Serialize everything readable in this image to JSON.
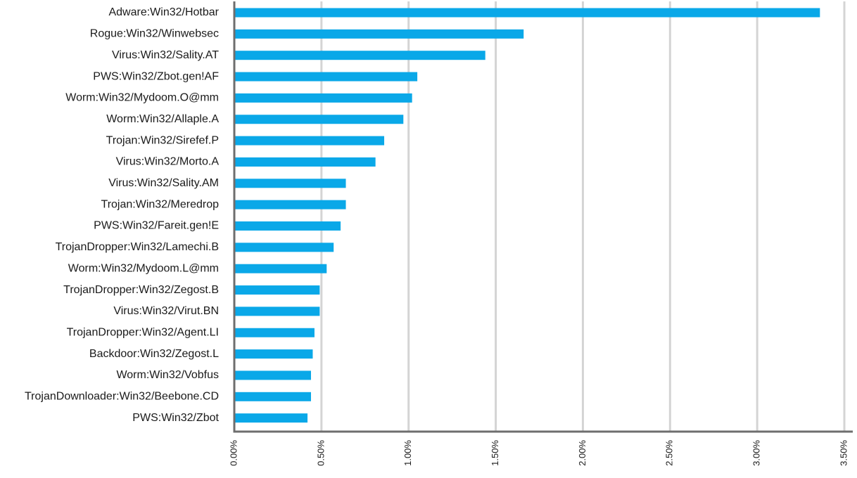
{
  "chart_data": {
    "type": "bar",
    "orientation": "horizontal",
    "categories": [
      "Adware:Win32/Hotbar",
      "Rogue:Win32/Winwebsec",
      "Virus:Win32/Sality.AT",
      "PWS:Win32/Zbot.gen!AF",
      "Worm:Win32/Mydoom.O@mm",
      "Worm:Win32/Allaple.A",
      "Trojan:Win32/Sirefef.P",
      "Virus:Win32/Morto.A",
      "Virus:Win32/Sality.AM",
      "Trojan:Win32/Meredrop",
      "PWS:Win32/Fareit.gen!E",
      "TrojanDropper:Win32/Lamechi.B",
      "Worm:Win32/Mydoom.L@mm",
      "TrojanDropper:Win32/Zegost.B",
      "Virus:Win32/Virut.BN",
      "TrojanDropper:Win32/Agent.LI",
      "Backdoor:Win32/Zegost.L",
      "Worm:Win32/Vobfus",
      "TrojanDownloader:Win32/Beebone.CD",
      "PWS:Win32/Zbot"
    ],
    "values": [
      3.36,
      1.66,
      1.44,
      1.05,
      1.02,
      0.97,
      0.86,
      0.81,
      0.64,
      0.64,
      0.61,
      0.57,
      0.53,
      0.49,
      0.49,
      0.46,
      0.45,
      0.44,
      0.44,
      0.42
    ],
    "xlim": [
      0,
      3.5
    ],
    "x_ticks": [
      0,
      0.5,
      1.0,
      1.5,
      2.0,
      2.5,
      3.0,
      3.5
    ],
    "x_tick_labels": [
      "0.00%",
      "0.50%",
      "1.00%",
      "1.50%",
      "2.00%",
      "2.50%",
      "3.00%",
      "3.50%"
    ],
    "grid": "vertical",
    "legend": "none",
    "title": "",
    "xlabel": "",
    "ylabel": "",
    "colors": {
      "bar": "#0aa8e8",
      "grid": "#d4d4d4",
      "axis": "#6e6e6e"
    }
  }
}
